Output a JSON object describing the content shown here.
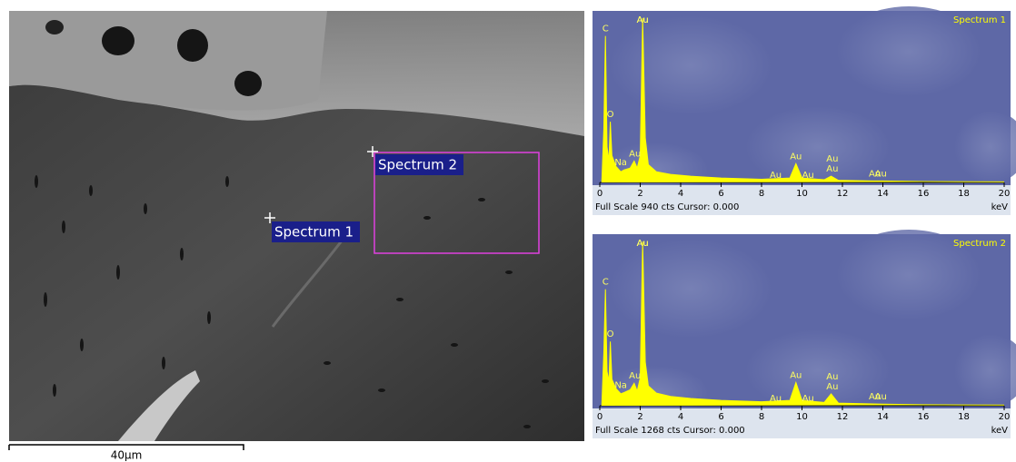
{
  "image": {
    "markers": [
      "Spectrum 1",
      "Spectrum 2"
    ],
    "scale_bar": "40µm"
  },
  "chart_data": [
    {
      "type": "line",
      "title": "Spectrum 1",
      "color": "#ffff00",
      "x": [
        0.1,
        0.2,
        0.28,
        0.36,
        0.45,
        0.52,
        0.6,
        0.8,
        1.04,
        1.2,
        1.5,
        1.7,
        1.85,
        2.0,
        2.12,
        2.25,
        2.4,
        2.8,
        3.5,
        4.5,
        6,
        8,
        9.4,
        9.7,
        10.0,
        11.1,
        11.44,
        11.8,
        13.5,
        14,
        16,
        18,
        20
      ],
      "values": [
        0,
        300,
        820,
        200,
        120,
        340,
        150,
        90,
        60,
        70,
        80,
        120,
        80,
        150,
        920,
        250,
        100,
        60,
        45,
        35,
        25,
        18,
        25,
        105,
        25,
        15,
        35,
        12,
        8,
        8,
        5,
        4,
        3
      ],
      "xlim": [
        0,
        20
      ],
      "xticks": [
        0,
        2,
        4,
        6,
        8,
        10,
        12,
        14,
        16,
        18,
        20
      ],
      "ylim": [
        0,
        940
      ],
      "xlabel": "keV",
      "footer": "Full Scale 940 cts Cursor: 0.000",
      "annotations": [
        {
          "label": "C",
          "x": 0.28
        },
        {
          "label": "O",
          "x": 0.52
        },
        {
          "label": "Na",
          "x": 1.04
        },
        {
          "label": "Au",
          "x": 1.74
        },
        {
          "label": "Au",
          "x": 2.12
        },
        {
          "label": "Au",
          "x": 2.12
        },
        {
          "label": "Au",
          "x": 8.7
        },
        {
          "label": "Au",
          "x": 9.7
        },
        {
          "label": "Au",
          "x": 10.3
        },
        {
          "label": "Au",
          "x": 11.5
        },
        {
          "label": "Au",
          "x": 11.5
        },
        {
          "label": "Au",
          "x": 13.6
        },
        {
          "label": "Au",
          "x": 13.9
        }
      ]
    },
    {
      "type": "line",
      "title": "Spectrum 2",
      "color": "#ffff00",
      "x": [
        0.1,
        0.2,
        0.28,
        0.36,
        0.45,
        0.52,
        0.6,
        0.8,
        1.04,
        1.2,
        1.5,
        1.7,
        1.85,
        2.0,
        2.12,
        2.25,
        2.4,
        2.8,
        3.5,
        4.5,
        6,
        8,
        9.4,
        9.7,
        10.0,
        11.1,
        11.44,
        11.8,
        13.5,
        14,
        16,
        18,
        20
      ],
      "values": [
        0,
        400,
        880,
        260,
        180,
        485,
        200,
        130,
        90,
        100,
        120,
        170,
        110,
        210,
        1240,
        330,
        150,
        95,
        70,
        55,
        40,
        30,
        40,
        175,
        40,
        25,
        90,
        20,
        14,
        12,
        8,
        6,
        5
      ],
      "xlim": [
        0,
        20
      ],
      "xticks": [
        0,
        2,
        4,
        6,
        8,
        10,
        12,
        14,
        16,
        18,
        20
      ],
      "ylim": [
        0,
        1268
      ],
      "xlabel": "keV",
      "footer": "Full Scale 1268 cts Cursor: 0.000",
      "annotations": [
        {
          "label": "C",
          "x": 0.28
        },
        {
          "label": "O",
          "x": 0.52
        },
        {
          "label": "Na",
          "x": 1.04
        },
        {
          "label": "Au",
          "x": 1.74
        },
        {
          "label": "Au",
          "x": 2.12
        },
        {
          "label": "Au",
          "x": 2.12
        },
        {
          "label": "Au",
          "x": 8.7
        },
        {
          "label": "Au",
          "x": 9.7
        },
        {
          "label": "Au",
          "x": 10.3
        },
        {
          "label": "Au",
          "x": 11.5
        },
        {
          "label": "Au",
          "x": 11.5
        },
        {
          "label": "Au",
          "x": 13.6
        },
        {
          "label": "Au",
          "x": 13.9
        }
      ]
    }
  ]
}
